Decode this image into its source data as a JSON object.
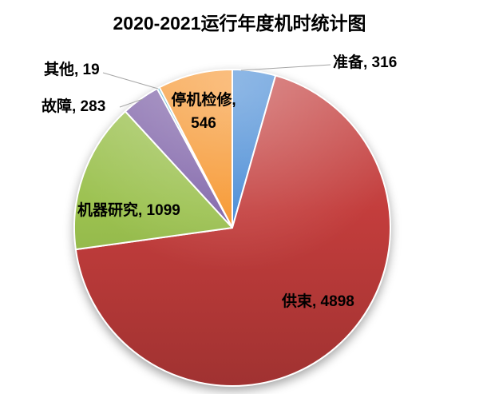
{
  "title": "2020-2021运行年度机时统计图",
  "chart_data": {
    "type": "pie",
    "title": "2020-2021运行年度机时统计图",
    "legend": "none",
    "start_angle_deg": 0,
    "direction": "clockwise",
    "label_format": "{label}, {value}",
    "slices": [
      {
        "slug": "zhunbei",
        "label": "准备",
        "value": 316,
        "color": "#4388D4",
        "data_label": "准备, 316",
        "label_placement": "outside-leader"
      },
      {
        "slug": "gongshu",
        "label": "供束",
        "value": 4898,
        "color": "#C33D3C",
        "data_label": "供束, 4898",
        "label_placement": "inside"
      },
      {
        "slug": "jiqi-yanjiu",
        "label": "机器研究",
        "value": 1099,
        "color": "#9BC14F",
        "data_label": "机器研究, 1099",
        "label_placement": "inside"
      },
      {
        "slug": "guzhang",
        "label": "故障",
        "value": 283,
        "color": "#7E62A8",
        "data_label": "故障, 283",
        "label_placement": "outside-leader"
      },
      {
        "slug": "qita",
        "label": "其他",
        "value": 19,
        "color": "#4BACC6",
        "data_label": "其他, 19",
        "label_placement": "outside-leader"
      },
      {
        "slug": "tingji-jianxiu",
        "label": "停机检修",
        "value": 546,
        "color": "#F6942A",
        "data_label": "停机检修, 546",
        "data_label_line1": "停机检修,",
        "data_label_line2": "546",
        "label_placement": "inside"
      }
    ]
  }
}
